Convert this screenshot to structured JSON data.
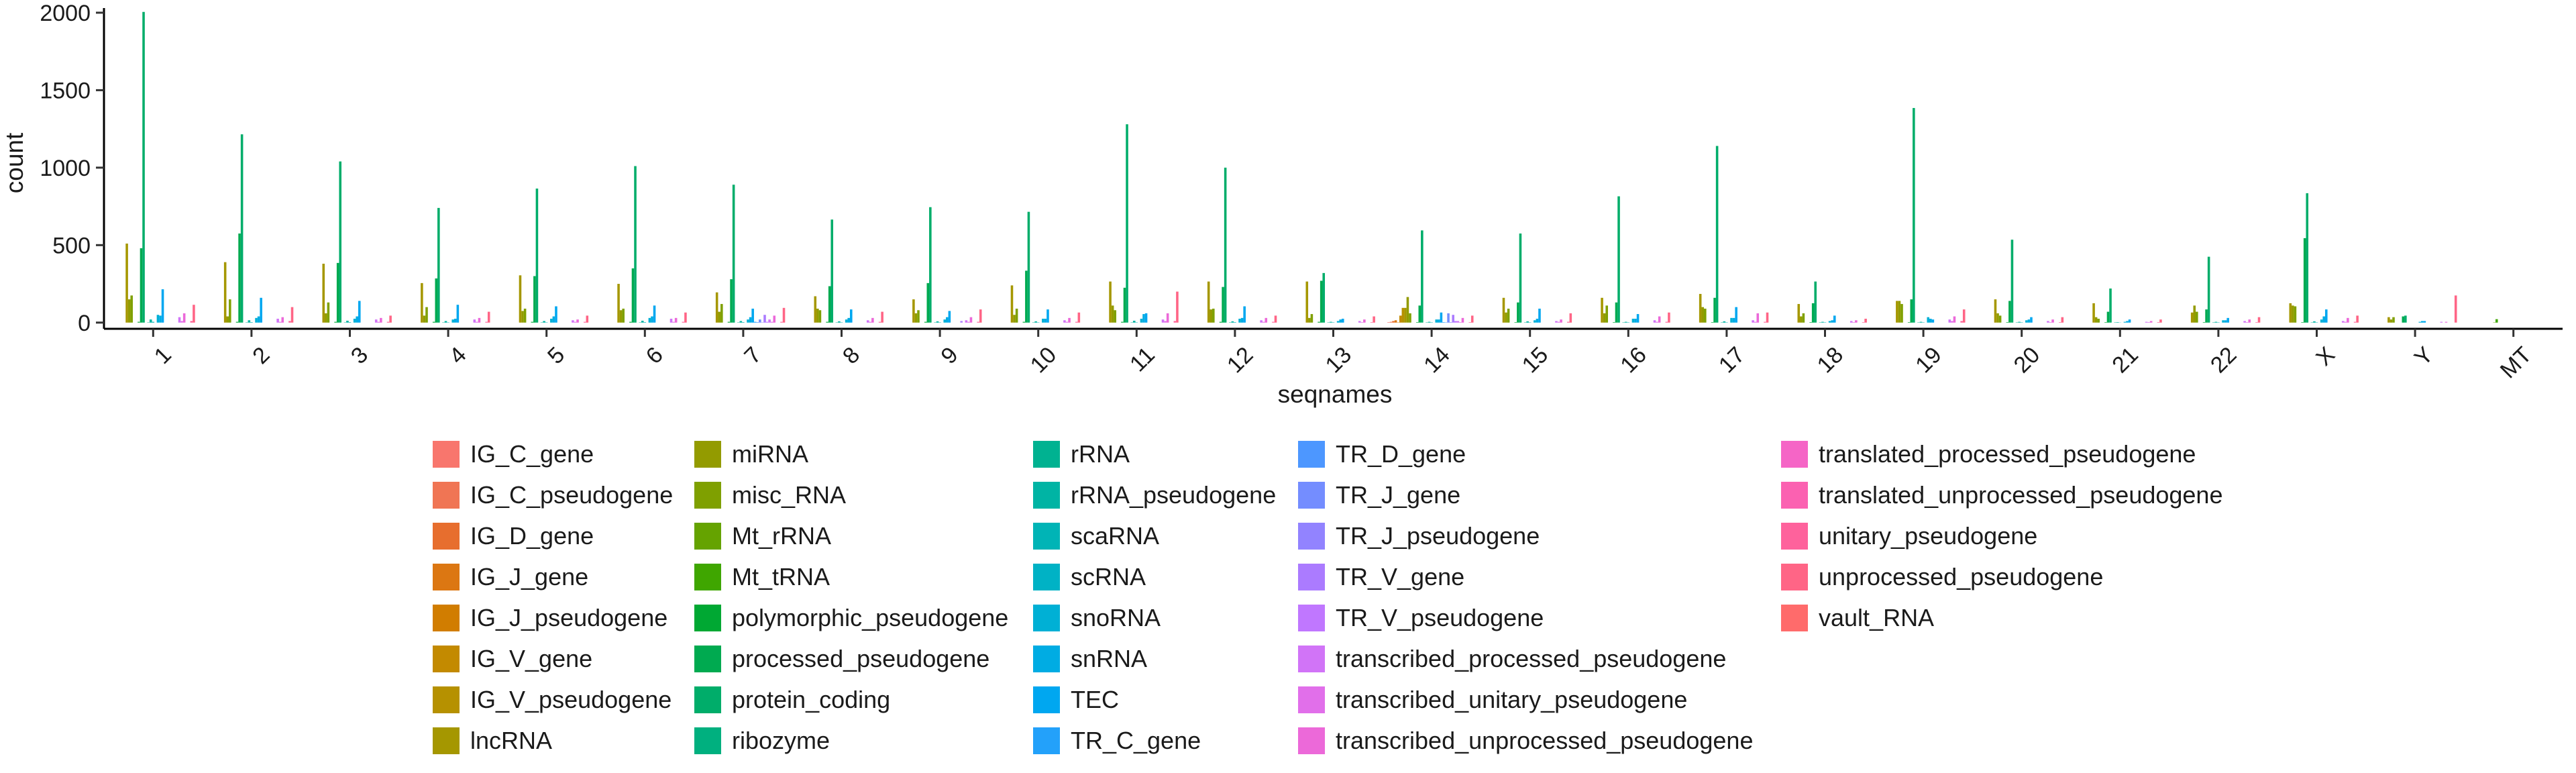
{
  "chart_data": {
    "type": "bar",
    "xlabel": "seqnames",
    "ylabel": "count",
    "ylim": [
      -40,
      2030
    ],
    "yticks": [
      0,
      500,
      1000,
      1500,
      2000
    ],
    "categories": [
      "1",
      "2",
      "3",
      "4",
      "5",
      "6",
      "7",
      "8",
      "9",
      "10",
      "11",
      "12",
      "13",
      "14",
      "15",
      "16",
      "17",
      "18",
      "19",
      "20",
      "21",
      "22",
      "X",
      "Y",
      "MT"
    ],
    "legend_placement": "bottom",
    "series": [
      {
        "name": "IG_C_gene",
        "color": "#F8766D",
        "values": [
          0,
          0,
          0,
          0,
          0,
          0,
          0,
          0,
          0,
          0,
          0,
          0,
          0,
          3,
          0,
          0,
          0,
          0,
          0,
          0,
          0,
          0,
          0,
          0,
          0
        ]
      },
      {
        "name": "IG_C_pseudogene",
        "color": "#F07554",
        "values": [
          0,
          0,
          0,
          0,
          0,
          0,
          0,
          0,
          0,
          0,
          0,
          0,
          0,
          5,
          0,
          0,
          0,
          0,
          0,
          0,
          0,
          0,
          0,
          0,
          0
        ]
      },
      {
        "name": "IG_D_gene",
        "color": "#E76E2E",
        "values": [
          0,
          0,
          0,
          0,
          0,
          0,
          0,
          0,
          0,
          0,
          0,
          0,
          0,
          10,
          0,
          0,
          0,
          0,
          0,
          0,
          0,
          0,
          0,
          0,
          0
        ]
      },
      {
        "name": "IG_J_gene",
        "color": "#DC7712",
        "values": [
          0,
          0,
          0,
          0,
          0,
          0,
          0,
          0,
          0,
          0,
          0,
          0,
          0,
          15,
          0,
          0,
          0,
          0,
          0,
          0,
          0,
          0,
          0,
          0,
          0
        ]
      },
      {
        "name": "IG_J_pseudogene",
        "color": "#D17D00",
        "values": [
          0,
          0,
          0,
          0,
          0,
          0,
          0,
          0,
          0,
          0,
          0,
          0,
          0,
          2,
          0,
          0,
          0,
          0,
          0,
          0,
          0,
          0,
          0,
          0,
          0
        ]
      },
      {
        "name": "IG_V_gene",
        "color": "#C38A00",
        "values": [
          0,
          0,
          0,
          0,
          0,
          0,
          0,
          0,
          0,
          0,
          0,
          0,
          0,
          45,
          0,
          0,
          0,
          0,
          0,
          0,
          0,
          0,
          0,
          0,
          0
        ]
      },
      {
        "name": "IG_V_pseudogene",
        "color": "#B69100",
        "values": [
          0,
          0,
          0,
          0,
          0,
          0,
          0,
          0,
          0,
          0,
          0,
          0,
          0,
          95,
          0,
          0,
          0,
          0,
          0,
          0,
          0,
          0,
          0,
          0,
          0
        ]
      },
      {
        "name": "lncRNA",
        "color": "#A59700",
        "values": [
          510,
          390,
          380,
          255,
          305,
          250,
          195,
          170,
          150,
          240,
          265,
          265,
          265,
          95,
          160,
          160,
          185,
          120,
          140,
          150,
          125,
          65,
          125,
          35,
          0
        ]
      },
      {
        "name": "miRNA",
        "color": "#939B00",
        "values": [
          150,
          40,
          60,
          45,
          75,
          80,
          70,
          90,
          60,
          50,
          110,
          85,
          30,
          165,
          65,
          60,
          100,
          40,
          140,
          60,
          35,
          110,
          110,
          20,
          0
        ]
      },
      {
        "name": "misc_RNA",
        "color": "#7FA000",
        "values": [
          175,
          150,
          130,
          100,
          90,
          90,
          120,
          80,
          80,
          90,
          80,
          90,
          55,
          60,
          90,
          110,
          90,
          60,
          120,
          45,
          25,
          70,
          105,
          35,
          0
        ]
      },
      {
        "name": "Mt_rRNA",
        "color": "#65A300",
        "values": [
          0,
          0,
          0,
          0,
          0,
          0,
          0,
          0,
          0,
          0,
          0,
          0,
          0,
          0,
          0,
          0,
          0,
          0,
          0,
          0,
          0,
          0,
          0,
          0,
          2
        ]
      },
      {
        "name": "Mt_tRNA",
        "color": "#3FA600",
        "values": [
          0,
          0,
          0,
          0,
          0,
          0,
          0,
          0,
          0,
          0,
          0,
          0,
          0,
          0,
          0,
          0,
          0,
          0,
          0,
          0,
          0,
          0,
          0,
          0,
          22
        ]
      },
      {
        "name": "polymorphic_pseudogene",
        "color": "#00A833",
        "values": [
          5,
          5,
          5,
          5,
          5,
          5,
          5,
          5,
          5,
          5,
          5,
          5,
          5,
          3,
          3,
          3,
          3,
          3,
          3,
          3,
          3,
          3,
          3,
          0,
          0
        ]
      },
      {
        "name": "processed_pseudogene",
        "color": "#00AA50",
        "values": [
          480,
          575,
          385,
          285,
          300,
          350,
          280,
          235,
          255,
          335,
          225,
          230,
          270,
          110,
          130,
          130,
          160,
          125,
          150,
          140,
          70,
          85,
          545,
          40,
          0
        ]
      },
      {
        "name": "protein_coding",
        "color": "#00AD6A",
        "values": [
          2005,
          1215,
          1040,
          740,
          865,
          1010,
          890,
          665,
          745,
          715,
          1280,
          1000,
          320,
          595,
          575,
          815,
          1140,
          265,
          1385,
          535,
          220,
          425,
          835,
          45,
          0
        ]
      },
      {
        "name": "ribozyme",
        "color": "#00B07F",
        "values": [
          0,
          0,
          0,
          0,
          0,
          0,
          0,
          0,
          0,
          0,
          0,
          0,
          0,
          0,
          0,
          0,
          0,
          0,
          0,
          0,
          0,
          0,
          0,
          0,
          0
        ]
      },
      {
        "name": "rRNA",
        "color": "#00B291",
        "values": [
          2,
          2,
          2,
          2,
          2,
          2,
          2,
          2,
          2,
          2,
          2,
          2,
          2,
          2,
          2,
          2,
          2,
          2,
          2,
          2,
          2,
          2,
          2,
          0,
          0
        ]
      },
      {
        "name": "rRNA_pseudogene",
        "color": "#00B4A4",
        "values": [
          20,
          15,
          12,
          10,
          10,
          12,
          10,
          8,
          8,
          8,
          12,
          8,
          5,
          5,
          8,
          5,
          8,
          5,
          5,
          5,
          3,
          5,
          8,
          0,
          0
        ]
      },
      {
        "name": "scaRNA",
        "color": "#00B4B6",
        "values": [
          5,
          3,
          3,
          2,
          2,
          3,
          3,
          2,
          2,
          2,
          2,
          3,
          2,
          2,
          2,
          2,
          2,
          2,
          2,
          2,
          1,
          2,
          2,
          0,
          0
        ]
      },
      {
        "name": "scRNA",
        "color": "#00B2C5",
        "values": [
          0,
          0,
          0,
          0,
          0,
          0,
          0,
          0,
          0,
          0,
          0,
          0,
          0,
          0,
          0,
          0,
          0,
          0,
          0,
          0,
          0,
          0,
          0,
          0,
          0
        ]
      },
      {
        "name": "snoRNA",
        "color": "#00B0D5",
        "values": [
          50,
          30,
          25,
          20,
          25,
          30,
          20,
          20,
          20,
          25,
          25,
          25,
          10,
          20,
          15,
          25,
          30,
          10,
          35,
          15,
          5,
          15,
          20,
          5,
          0
        ]
      },
      {
        "name": "snRNA",
        "color": "#00ACE3",
        "values": [
          45,
          40,
          40,
          25,
          40,
          40,
          35,
          30,
          35,
          25,
          55,
          30,
          20,
          20,
          25,
          25,
          30,
          15,
          25,
          20,
          10,
          15,
          40,
          10,
          0
        ]
      },
      {
        "name": "TEC",
        "color": "#00A7F0",
        "values": [
          215,
          160,
          140,
          115,
          105,
          110,
          90,
          85,
          75,
          85,
          60,
          105,
          25,
          65,
          90,
          55,
          100,
          45,
          20,
          35,
          20,
          30,
          85,
          10,
          0
        ]
      },
      {
        "name": "TR_C_gene",
        "color": "#23A1FA",
        "values": [
          0,
          0,
          0,
          0,
          0,
          0,
          5,
          0,
          0,
          0,
          0,
          0,
          0,
          3,
          0,
          0,
          0,
          0,
          0,
          0,
          0,
          0,
          0,
          0,
          0
        ]
      },
      {
        "name": "TR_D_gene",
        "color": "#4D97FF",
        "values": [
          0,
          0,
          0,
          0,
          0,
          0,
          3,
          0,
          0,
          0,
          0,
          0,
          0,
          2,
          0,
          0,
          0,
          0,
          0,
          0,
          0,
          0,
          0,
          0,
          0
        ]
      },
      {
        "name": "TR_J_gene",
        "color": "#748DFF",
        "values": [
          0,
          0,
          0,
          0,
          0,
          0,
          20,
          0,
          0,
          0,
          0,
          0,
          0,
          60,
          0,
          0,
          0,
          0,
          0,
          0,
          0,
          0,
          0,
          0,
          0
        ]
      },
      {
        "name": "TR_J_pseudogene",
        "color": "#9283FF",
        "values": [
          0,
          0,
          0,
          0,
          0,
          0,
          2,
          0,
          0,
          0,
          0,
          0,
          0,
          3,
          0,
          0,
          0,
          0,
          0,
          0,
          0,
          0,
          0,
          0,
          0
        ]
      },
      {
        "name": "TR_V_gene",
        "color": "#AB7BFF",
        "values": [
          0,
          0,
          0,
          0,
          0,
          0,
          50,
          0,
          10,
          0,
          0,
          0,
          0,
          50,
          0,
          0,
          0,
          0,
          0,
          0,
          0,
          0,
          0,
          0,
          0
        ]
      },
      {
        "name": "TR_V_pseudogene",
        "color": "#C077FF",
        "values": [
          0,
          0,
          0,
          0,
          0,
          0,
          5,
          0,
          0,
          0,
          0,
          0,
          0,
          10,
          0,
          0,
          0,
          0,
          0,
          0,
          0,
          0,
          0,
          0,
          0
        ]
      },
      {
        "name": "transcribed_processed_pseudogene",
        "color": "#D174F7",
        "values": [
          35,
          25,
          20,
          20,
          15,
          25,
          20,
          15,
          15,
          15,
          20,
          15,
          10,
          10,
          10,
          15,
          15,
          10,
          20,
          10,
          5,
          10,
          10,
          5,
          0
        ]
      },
      {
        "name": "transcribed_unitary_pseudogene",
        "color": "#E16FEA",
        "values": [
          10,
          5,
          5,
          5,
          5,
          5,
          5,
          5,
          5,
          5,
          10,
          5,
          3,
          3,
          5,
          5,
          5,
          3,
          10,
          3,
          3,
          3,
          5,
          0,
          0
        ]
      },
      {
        "name": "transcribed_unprocessed_pseudogene",
        "color": "#EC69D9",
        "values": [
          60,
          35,
          30,
          30,
          20,
          30,
          45,
          30,
          35,
          30,
          60,
          30,
          20,
          30,
          20,
          40,
          60,
          15,
          40,
          20,
          10,
          20,
          30,
          5,
          0
        ]
      },
      {
        "name": "translated_processed_pseudogene",
        "color": "#F565C6",
        "values": [
          0,
          0,
          0,
          0,
          0,
          0,
          0,
          0,
          0,
          0,
          0,
          0,
          0,
          0,
          0,
          0,
          0,
          0,
          0,
          0,
          0,
          0,
          0,
          0,
          0
        ]
      },
      {
        "name": "translated_unprocessed_pseudogene",
        "color": "#FB61B1",
        "values": [
          0,
          0,
          0,
          0,
          0,
          0,
          0,
          0,
          0,
          0,
          0,
          0,
          0,
          0,
          0,
          0,
          0,
          0,
          0,
          0,
          0,
          0,
          0,
          0,
          0
        ]
      },
      {
        "name": "unitary_pseudogene",
        "color": "#FE629C",
        "values": [
          10,
          10,
          5,
          5,
          5,
          5,
          5,
          5,
          5,
          5,
          10,
          5,
          3,
          3,
          5,
          5,
          5,
          3,
          10,
          3,
          3,
          3,
          5,
          0,
          0
        ]
      },
      {
        "name": "unprocessed_pseudogene",
        "color": "#FF6586",
        "values": [
          115,
          100,
          45,
          70,
          45,
          65,
          95,
          70,
          85,
          65,
          200,
          45,
          40,
          45,
          60,
          65,
          65,
          25,
          85,
          35,
          20,
          35,
          45,
          175,
          0
        ]
      },
      {
        "name": "vault_RNA",
        "color": "#FF6B6B",
        "values": [
          0,
          0,
          0,
          0,
          0,
          0,
          0,
          0,
          0,
          0,
          0,
          0,
          0,
          0,
          0,
          0,
          0,
          0,
          0,
          0,
          0,
          0,
          0,
          0,
          0
        ]
      }
    ]
  }
}
